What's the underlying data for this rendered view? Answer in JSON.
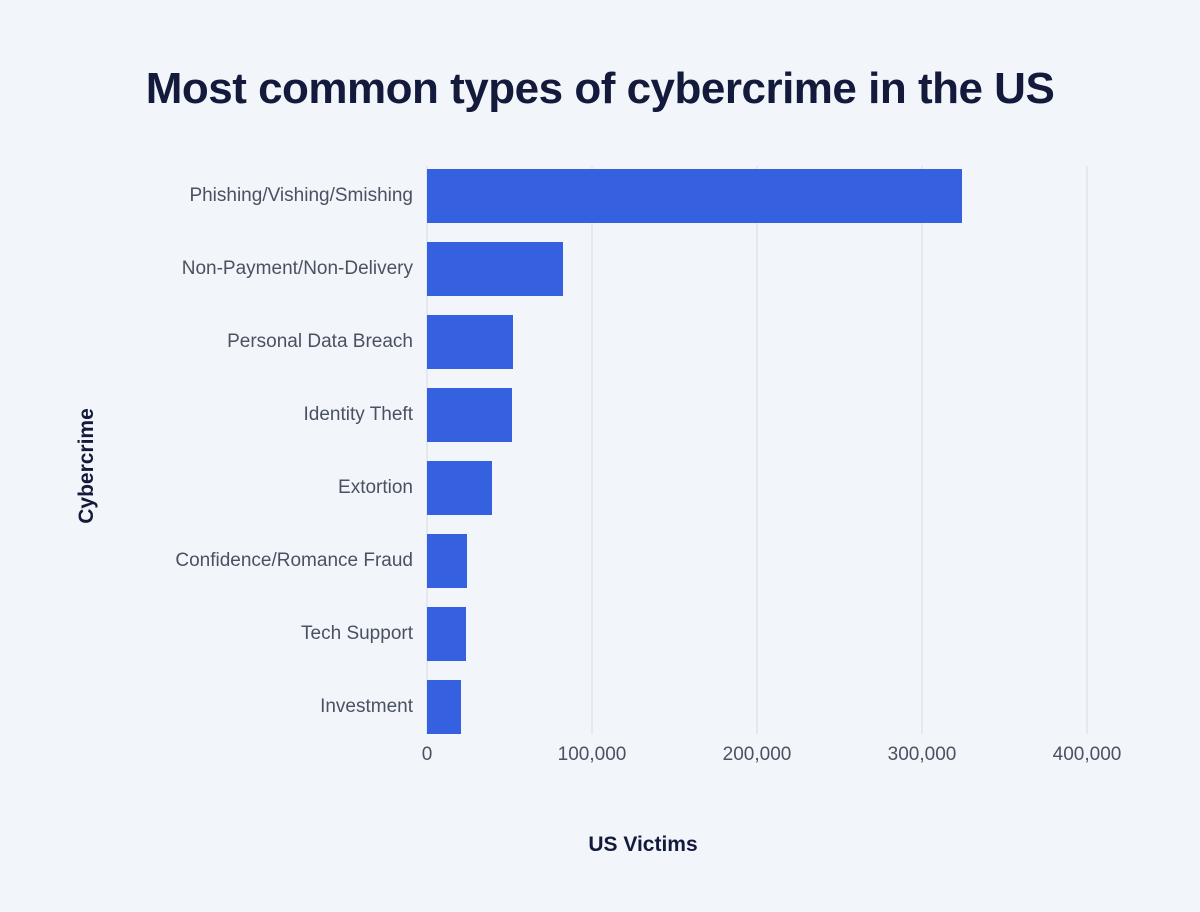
{
  "chart_data": {
    "type": "bar",
    "orientation": "horizontal",
    "title": "Most common types of cybercrime in the US",
    "xlabel": "US Victims",
    "ylabel": "Cybercrime",
    "categories": [
      "Phishing/Vishing/Smishing",
      "Non-Payment/Non-Delivery",
      "Personal Data Breach",
      "Identity Theft",
      "Extortion",
      "Confidence/Romance Fraud",
      "Tech Support",
      "Investment"
    ],
    "values": [
      323972,
      82478,
      51829,
      51629,
      39360,
      24299,
      23903,
      20561
    ],
    "x_ticks": [
      {
        "value": 0,
        "label": "0"
      },
      {
        "value": 100000,
        "label": "100,000"
      },
      {
        "value": 200000,
        "label": "200,000"
      },
      {
        "value": 300000,
        "label": "300,000"
      },
      {
        "value": 400000,
        "label": "400,000"
      }
    ],
    "xlim": [
      0,
      444000
    ],
    "grid": "vertical",
    "legend": false,
    "bar_color": "#3560e0"
  },
  "colors": {
    "background": "#f2f6fb",
    "bar": "#3560e0",
    "gridline": "#e4e9f1",
    "title_text": "#141a3c",
    "label_text": "#4a5160"
  }
}
